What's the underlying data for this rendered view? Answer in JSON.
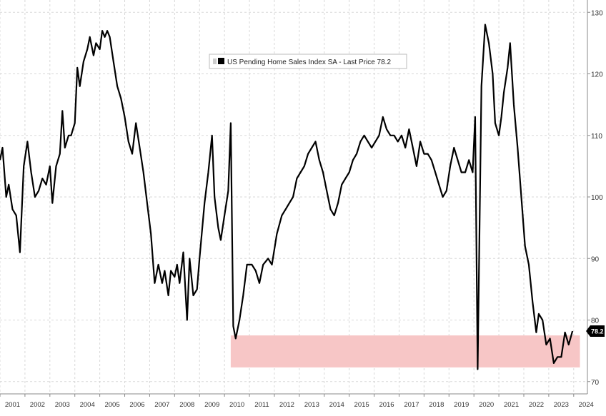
{
  "chart_data": {
    "type": "line",
    "title": "",
    "xlabel": "",
    "ylabel": "",
    "legend": {
      "placement": "top-center",
      "entries": [
        "US Pending Home Sales Index SA - Last Price 78.2"
      ]
    },
    "x_tick_labels": [
      "2001",
      "2002",
      "2003",
      "2004",
      "2005",
      "2006",
      "2007",
      "2008",
      "2009",
      "2010",
      "2011",
      "2012",
      "2013",
      "2014",
      "2015",
      "2016",
      "2017",
      "2018",
      "2019",
      "2020",
      "2021",
      "2022",
      "2023",
      "2024"
    ],
    "y_tick_labels": [
      "70",
      "80",
      "90",
      "100",
      "110",
      "120",
      "130"
    ],
    "ylim": [
      68,
      132
    ],
    "xlim": [
      2001.0,
      2024.55
    ],
    "y_axis_side": "right",
    "grid": true,
    "last_value_label": "78.2",
    "highlight_band": {
      "x_start": 2010.25,
      "x_end": 2024.25,
      "y_low": 72.3,
      "y_high": 77.5,
      "color": "#f7c6c6"
    },
    "colors": {
      "line": "#000000",
      "grid": "#d8d8d8",
      "band": "#f7c6c6",
      "last_badge": "#000000"
    },
    "series": [
      {
        "name": "US Pending Home Sales Index SA",
        "points": [
          [
            2001.0,
            106
          ],
          [
            2001.1,
            108
          ],
          [
            2001.25,
            100
          ],
          [
            2001.35,
            102
          ],
          [
            2001.5,
            98
          ],
          [
            2001.65,
            97
          ],
          [
            2001.8,
            91
          ],
          [
            2001.95,
            105
          ],
          [
            2002.1,
            109
          ],
          [
            2002.25,
            104
          ],
          [
            2002.4,
            100
          ],
          [
            2002.55,
            101
          ],
          [
            2002.7,
            103
          ],
          [
            2002.85,
            102
          ],
          [
            2003.0,
            105
          ],
          [
            2003.1,
            99
          ],
          [
            2003.25,
            105
          ],
          [
            2003.4,
            107
          ],
          [
            2003.5,
            114
          ],
          [
            2003.6,
            108
          ],
          [
            2003.75,
            110
          ],
          [
            2003.85,
            110
          ],
          [
            2004.0,
            112
          ],
          [
            2004.1,
            121
          ],
          [
            2004.2,
            118
          ],
          [
            2004.35,
            122
          ],
          [
            2004.5,
            124
          ],
          [
            2004.6,
            126
          ],
          [
            2004.75,
            123
          ],
          [
            2004.85,
            125
          ],
          [
            2005.0,
            124
          ],
          [
            2005.1,
            127
          ],
          [
            2005.2,
            126
          ],
          [
            2005.3,
            127
          ],
          [
            2005.4,
            126
          ],
          [
            2005.55,
            122
          ],
          [
            2005.7,
            118
          ],
          [
            2005.85,
            116
          ],
          [
            2006.0,
            113
          ],
          [
            2006.15,
            109
          ],
          [
            2006.3,
            107
          ],
          [
            2006.45,
            112
          ],
          [
            2006.6,
            108
          ],
          [
            2006.75,
            104
          ],
          [
            2006.9,
            99
          ],
          [
            2007.05,
            94
          ],
          [
            2007.2,
            86
          ],
          [
            2007.35,
            89
          ],
          [
            2007.5,
            86
          ],
          [
            2007.6,
            88
          ],
          [
            2007.75,
            84
          ],
          [
            2007.85,
            88
          ],
          [
            2008.0,
            87
          ],
          [
            2008.1,
            89
          ],
          [
            2008.2,
            86
          ],
          [
            2008.35,
            91
          ],
          [
            2008.5,
            80
          ],
          [
            2008.6,
            90
          ],
          [
            2008.75,
            84
          ],
          [
            2008.9,
            85
          ],
          [
            2009.0,
            90
          ],
          [
            2009.2,
            99
          ],
          [
            2009.35,
            104
          ],
          [
            2009.5,
            110
          ],
          [
            2009.6,
            100
          ],
          [
            2009.75,
            95
          ],
          [
            2009.85,
            93
          ],
          [
            2010.0,
            97
          ],
          [
            2010.15,
            101
          ],
          [
            2010.25,
            112
          ],
          [
            2010.35,
            79
          ],
          [
            2010.45,
            77
          ],
          [
            2010.6,
            80
          ],
          [
            2010.75,
            84
          ],
          [
            2010.9,
            89
          ],
          [
            2011.1,
            89
          ],
          [
            2011.25,
            88
          ],
          [
            2011.4,
            86
          ],
          [
            2011.55,
            89
          ],
          [
            2011.75,
            90
          ],
          [
            2011.9,
            89
          ],
          [
            2012.1,
            94
          ],
          [
            2012.3,
            97
          ],
          [
            2012.45,
            98
          ],
          [
            2012.6,
            99
          ],
          [
            2012.75,
            100
          ],
          [
            2012.9,
            103
          ],
          [
            2013.05,
            104
          ],
          [
            2013.2,
            105
          ],
          [
            2013.35,
            107
          ],
          [
            2013.5,
            108
          ],
          [
            2013.65,
            109
          ],
          [
            2013.8,
            106
          ],
          [
            2013.95,
            104
          ],
          [
            2014.1,
            101
          ],
          [
            2014.25,
            98
          ],
          [
            2014.4,
            97
          ],
          [
            2014.55,
            99
          ],
          [
            2014.7,
            102
          ],
          [
            2014.85,
            103
          ],
          [
            2015.0,
            104
          ],
          [
            2015.15,
            106
          ],
          [
            2015.3,
            107
          ],
          [
            2015.45,
            109
          ],
          [
            2015.6,
            110
          ],
          [
            2015.75,
            109
          ],
          [
            2015.9,
            108
          ],
          [
            2016.05,
            109
          ],
          [
            2016.2,
            110
          ],
          [
            2016.35,
            113
          ],
          [
            2016.5,
            111
          ],
          [
            2016.65,
            110
          ],
          [
            2016.8,
            110
          ],
          [
            2016.95,
            109
          ],
          [
            2017.1,
            110
          ],
          [
            2017.25,
            108
          ],
          [
            2017.4,
            111
          ],
          [
            2017.55,
            108
          ],
          [
            2017.7,
            105
          ],
          [
            2017.85,
            109
          ],
          [
            2018.0,
            107
          ],
          [
            2018.15,
            107
          ],
          [
            2018.3,
            106
          ],
          [
            2018.45,
            104
          ],
          [
            2018.6,
            102
          ],
          [
            2018.75,
            100
          ],
          [
            2018.9,
            101
          ],
          [
            2019.05,
            105
          ],
          [
            2019.2,
            108
          ],
          [
            2019.35,
            106
          ],
          [
            2019.5,
            104
          ],
          [
            2019.65,
            104
          ],
          [
            2019.8,
            106
          ],
          [
            2019.95,
            104
          ],
          [
            2020.05,
            113
          ],
          [
            2020.15,
            72
          ],
          [
            2020.3,
            118
          ],
          [
            2020.45,
            128
          ],
          [
            2020.6,
            125
          ],
          [
            2020.75,
            120
          ],
          [
            2020.85,
            112
          ],
          [
            2021.0,
            110
          ],
          [
            2021.1,
            113
          ],
          [
            2021.2,
            117
          ],
          [
            2021.35,
            121
          ],
          [
            2021.45,
            125
          ],
          [
            2021.6,
            115
          ],
          [
            2021.75,
            108
          ],
          [
            2021.9,
            100
          ],
          [
            2022.05,
            92
          ],
          [
            2022.2,
            89
          ],
          [
            2022.35,
            83
          ],
          [
            2022.5,
            78
          ],
          [
            2022.6,
            81
          ],
          [
            2022.75,
            80
          ],
          [
            2022.9,
            76
          ],
          [
            2023.05,
            77
          ],
          [
            2023.2,
            73
          ],
          [
            2023.35,
            74
          ],
          [
            2023.5,
            74
          ],
          [
            2023.65,
            78
          ],
          [
            2023.8,
            76
          ],
          [
            2023.95,
            78.2
          ]
        ]
      }
    ]
  }
}
